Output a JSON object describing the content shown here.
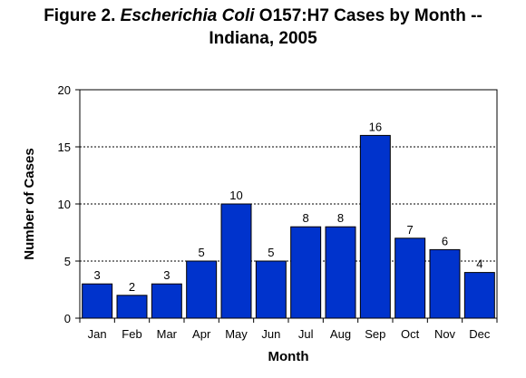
{
  "title": {
    "prefix": "Figure 2.  ",
    "italic": "Escherichia Coli",
    "suffix": " O157:H7 Cases by Month --",
    "line2": "Indiana, 2005"
  },
  "chart_data": {
    "type": "bar",
    "categories": [
      "Jan",
      "Feb",
      "Mar",
      "Apr",
      "May",
      "Jun",
      "Jul",
      "Aug",
      "Sep",
      "Oct",
      "Nov",
      "Dec"
    ],
    "values": [
      3,
      2,
      3,
      5,
      10,
      5,
      8,
      8,
      16,
      7,
      6,
      4
    ],
    "xlabel": "Month",
    "ylabel": "Number of Cases",
    "ylim": [
      0,
      20
    ],
    "yticks": [
      0,
      5,
      10,
      15,
      20
    ],
    "grid": "horizontal dashed",
    "bar_color": "#0033cc",
    "legend": "none"
  }
}
